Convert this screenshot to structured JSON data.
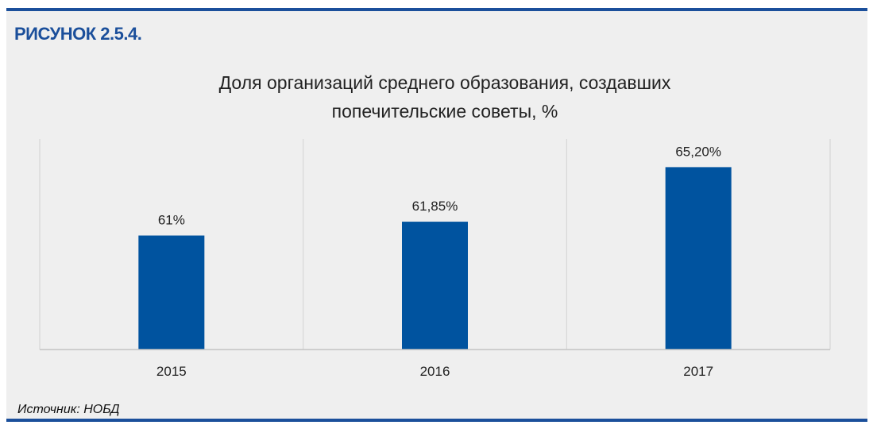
{
  "header": {
    "figure_label": "РИСУНОК 2.5.4."
  },
  "footer": {
    "source": "Источник: НОБД"
  },
  "colors": {
    "bar": "#00539f",
    "accent": "#1b4f9b",
    "background": "#efefef"
  },
  "chart_data": {
    "type": "bar",
    "title_line1": "Доля организаций среднего образования, создавших",
    "title_line2": "попечительские советы, %",
    "categories": [
      "2015",
      "2016",
      "2017"
    ],
    "values": [
      61,
      61.85,
      65.2
    ],
    "data_labels": [
      "61%",
      "61,85%",
      "65,20%"
    ],
    "ylim": [
      54,
      66
    ],
    "grid": "vertical separators between categories",
    "legend": "none"
  }
}
